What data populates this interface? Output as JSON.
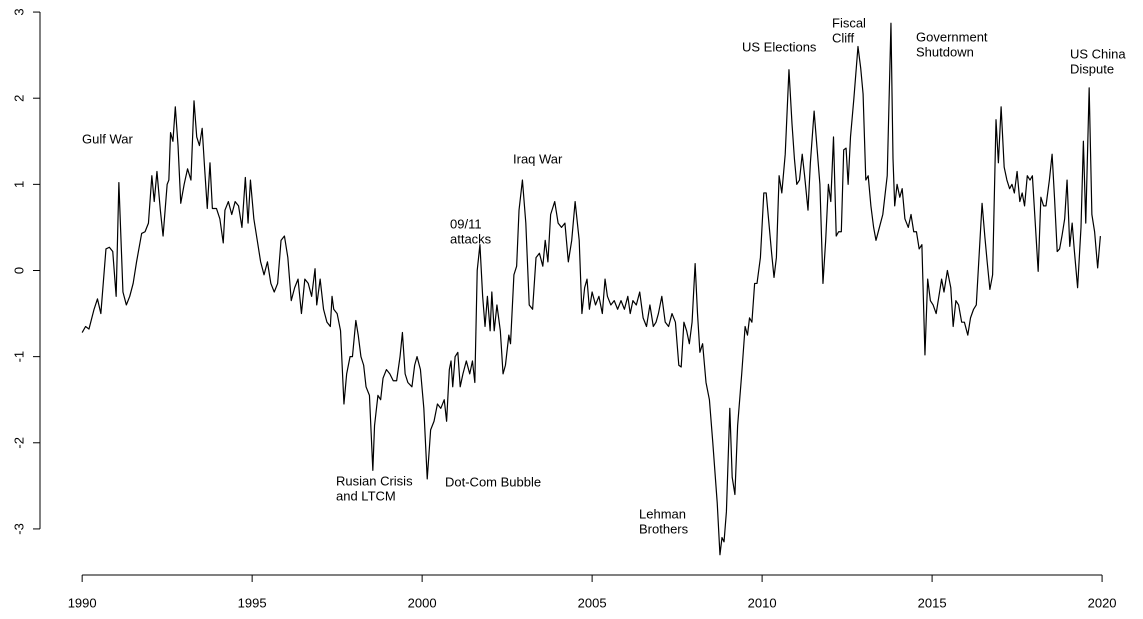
{
  "chart_data": {
    "type": "line",
    "xlim": [
      1988.76,
      2020.38
    ],
    "ylim": [
      -3.5,
      3.14
    ],
    "xticks": [
      1990,
      1995,
      2000,
      2005,
      2010,
      2015,
      2020
    ],
    "yticks": [
      -3,
      -2,
      -1,
      0,
      1,
      2,
      3
    ],
    "color": "#000000",
    "annotations": [
      [
        "Gulf War"
      ],
      [
        "Rusian Crisis",
        "and LTCM"
      ],
      [
        "Dot-Com Bubble"
      ],
      [
        "09/11",
        "attacks"
      ],
      [
        "Iraq War"
      ],
      [
        "Lehman",
        "Brothers"
      ],
      [
        "US Elections"
      ],
      [
        "Fiscal",
        "Cliff"
      ],
      [
        "Government",
        "Shutdown"
      ],
      [
        "US China",
        "Dispute"
      ]
    ],
    "x": [
      1990.0,
      1990.1,
      1990.2,
      1990.35,
      1990.45,
      1990.55,
      1990.7,
      1990.8,
      1990.9,
      1991.0,
      1991.08,
      1991.2,
      1991.3,
      1991.4,
      1991.5,
      1991.6,
      1991.75,
      1991.85,
      1991.95,
      1992.05,
      1992.12,
      1992.2,
      1992.3,
      1992.38,
      1992.5,
      1992.55,
      1992.6,
      1992.67,
      1992.74,
      1992.82,
      1992.9,
      1993.0,
      1993.1,
      1993.2,
      1993.29,
      1993.37,
      1993.45,
      1993.53,
      1993.6,
      1993.68,
      1993.76,
      1993.83,
      1993.95,
      1994.05,
      1994.15,
      1994.2,
      1994.3,
      1994.4,
      1994.5,
      1994.6,
      1994.7,
      1994.8,
      1994.88,
      1994.95,
      1995.05,
      1995.15,
      1995.25,
      1995.35,
      1995.45,
      1995.55,
      1995.65,
      1995.75,
      1995.85,
      1995.95,
      1996.05,
      1996.15,
      1996.25,
      1996.35,
      1996.45,
      1996.55,
      1996.65,
      1996.75,
      1996.85,
      1996.9,
      1997.0,
      1997.1,
      1997.2,
      1997.3,
      1997.35,
      1997.4,
      1997.5,
      1997.6,
      1997.7,
      1997.78,
      1997.88,
      1997.95,
      1998.05,
      1998.12,
      1998.2,
      1998.28,
      1998.35,
      1998.45,
      1998.55,
      1998.6,
      1998.7,
      1998.78,
      1998.85,
      1998.95,
      1999.05,
      1999.15,
      1999.25,
      1999.35,
      1999.42,
      1999.5,
      1999.58,
      1999.7,
      1999.78,
      1999.85,
      1999.95,
      2000.05,
      2000.15,
      2000.25,
      2000.35,
      2000.45,
      2000.55,
      2000.65,
      2000.72,
      2000.8,
      2000.85,
      2000.9,
      2000.97,
      2001.05,
      2001.12,
      2001.2,
      2001.3,
      2001.4,
      2001.48,
      2001.55,
      2001.62,
      2001.7,
      2001.78,
      2001.85,
      2001.92,
      2002.0,
      2002.05,
      2002.12,
      2002.2,
      2002.3,
      2002.38,
      2002.45,
      2002.55,
      2002.6,
      2002.7,
      2002.78,
      2002.85,
      2002.95,
      2003.05,
      2003.15,
      2003.25,
      2003.35,
      2003.45,
      2003.55,
      2003.62,
      2003.7,
      2003.78,
      2003.9,
      2004.0,
      2004.1,
      2004.2,
      2004.3,
      2004.4,
      2004.5,
      2004.62,
      2004.7,
      2004.78,
      2004.85,
      2004.92,
      2005.0,
      2005.1,
      2005.2,
      2005.3,
      2005.38,
      2005.45,
      2005.55,
      2005.65,
      2005.75,
      2005.85,
      2005.95,
      2006.05,
      2006.12,
      2006.2,
      2006.3,
      2006.4,
      2006.5,
      2006.6,
      2006.7,
      2006.8,
      2006.88,
      2006.95,
      2007.05,
      2007.15,
      2007.25,
      2007.35,
      2007.45,
      2007.55,
      2007.62,
      2007.7,
      2007.78,
      2007.86,
      2007.94,
      2008.03,
      2008.1,
      2008.17,
      2008.25,
      2008.35,
      2008.45,
      2008.55,
      2008.68,
      2008.76,
      2008.82,
      2008.88,
      2008.95,
      2009.05,
      2009.12,
      2009.2,
      2009.28,
      2009.4,
      2009.5,
      2009.57,
      2009.63,
      2009.7,
      2009.78,
      2009.85,
      2009.95,
      2010.05,
      2010.12,
      2010.2,
      2010.28,
      2010.35,
      2010.42,
      2010.5,
      2010.58,
      2010.68,
      2010.79,
      2010.88,
      2010.95,
      2011.02,
      2011.1,
      2011.18,
      2011.25,
      2011.35,
      2011.42,
      2011.53,
      2011.62,
      2011.7,
      2011.79,
      2011.87,
      2011.95,
      2012.02,
      2012.1,
      2012.18,
      2012.25,
      2012.33,
      2012.4,
      2012.47,
      2012.53,
      2012.6,
      2012.7,
      2012.82,
      2012.9,
      2012.97,
      2013.05,
      2013.12,
      2013.2,
      2013.28,
      2013.35,
      2013.45,
      2013.55,
      2013.68,
      2013.79,
      2013.85,
      2013.9,
      2013.97,
      2014.05,
      2014.12,
      2014.2,
      2014.3,
      2014.38,
      2014.46,
      2014.54,
      2014.62,
      2014.7,
      2014.79,
      2014.87,
      2014.95,
      2015.03,
      2015.12,
      2015.2,
      2015.28,
      2015.35,
      2015.45,
      2015.55,
      2015.62,
      2015.7,
      2015.78,
      2015.87,
      2015.95,
      2016.05,
      2016.13,
      2016.22,
      2016.3,
      2016.47,
      2016.55,
      2016.62,
      2016.7,
      2016.78,
      2016.88,
      2016.95,
      2017.03,
      2017.12,
      2017.2,
      2017.28,
      2017.35,
      2017.42,
      2017.5,
      2017.58,
      2017.65,
      2017.72,
      2017.8,
      2017.88,
      2017.95,
      2018.12,
      2018.2,
      2018.28,
      2018.35,
      2018.45,
      2018.53,
      2018.6,
      2018.68,
      2018.75,
      2018.82,
      2018.9,
      2018.97,
      2019.05,
      2019.12,
      2019.18,
      2019.28,
      2019.38,
      2019.45,
      2019.52,
      2019.62,
      2019.7,
      2019.78,
      2019.87,
      2019.95
    ],
    "values": [
      -0.72,
      -0.65,
      -0.68,
      -0.45,
      -0.33,
      -0.5,
      0.25,
      0.27,
      0.22,
      -0.3,
      1.02,
      -0.25,
      -0.4,
      -0.3,
      -0.15,
      0.1,
      0.43,
      0.45,
      0.55,
      1.1,
      0.8,
      1.15,
      0.7,
      0.4,
      1.0,
      1.05,
      1.6,
      1.5,
      1.9,
      1.45,
      0.78,
      1.0,
      1.18,
      1.05,
      1.97,
      1.55,
      1.45,
      1.65,
      1.2,
      0.72,
      1.25,
      0.72,
      0.72,
      0.6,
      0.32,
      0.7,
      0.8,
      0.65,
      0.8,
      0.75,
      0.5,
      1.08,
      0.55,
      1.05,
      0.6,
      0.35,
      0.1,
      -0.05,
      0.1,
      -0.15,
      -0.25,
      -0.15,
      0.35,
      0.4,
      0.15,
      -0.35,
      -0.2,
      -0.1,
      -0.5,
      -0.1,
      -0.15,
      -0.3,
      0.02,
      -0.4,
      -0.1,
      -0.45,
      -0.6,
      -0.65,
      -0.3,
      -0.45,
      -0.5,
      -0.7,
      -1.55,
      -1.2,
      -1.0,
      -1.0,
      -0.58,
      -0.75,
      -1.0,
      -1.1,
      -1.35,
      -1.45,
      -2.32,
      -1.8,
      -1.45,
      -1.5,
      -1.25,
      -1.15,
      -1.2,
      -1.28,
      -1.28,
      -1.0,
      -0.72,
      -1.2,
      -1.3,
      -1.35,
      -1.1,
      -1.0,
      -1.15,
      -1.6,
      -2.42,
      -1.85,
      -1.75,
      -1.55,
      -1.6,
      -1.5,
      -1.75,
      -1.15,
      -1.05,
      -1.35,
      -1.0,
      -0.95,
      -1.35,
      -1.2,
      -1.05,
      -1.2,
      -1.05,
      -1.3,
      0.0,
      0.3,
      -0.3,
      -0.65,
      -0.3,
      -0.7,
      -0.25,
      -0.7,
      -0.4,
      -0.7,
      -1.2,
      -1.1,
      -0.75,
      -0.85,
      -0.05,
      0.05,
      0.7,
      1.05,
      0.55,
      -0.4,
      -0.45,
      0.15,
      0.2,
      0.05,
      0.35,
      0.1,
      0.65,
      0.8,
      0.55,
      0.5,
      0.55,
      0.1,
      0.35,
      0.8,
      0.35,
      -0.5,
      -0.2,
      -0.1,
      -0.45,
      -0.25,
      -0.4,
      -0.3,
      -0.5,
      -0.1,
      -0.3,
      -0.4,
      -0.35,
      -0.45,
      -0.35,
      -0.45,
      -0.3,
      -0.5,
      -0.35,
      -0.4,
      -0.25,
      -0.55,
      -0.65,
      -0.4,
      -0.65,
      -0.6,
      -0.5,
      -0.3,
      -0.6,
      -0.65,
      -0.5,
      -0.6,
      -1.1,
      -1.12,
      -0.6,
      -0.7,
      -0.85,
      -0.6,
      0.08,
      -0.5,
      -0.95,
      -0.85,
      -1.3,
      -1.5,
      -2.0,
      -2.7,
      -3.3,
      -3.1,
      -3.15,
      -2.8,
      -1.6,
      -2.4,
      -2.6,
      -1.8,
      -1.2,
      -0.65,
      -0.75,
      -0.55,
      -0.6,
      -0.15,
      -0.15,
      0.15,
      0.9,
      0.9,
      0.55,
      0.2,
      -0.08,
      0.15,
      1.1,
      0.9,
      1.35,
      2.33,
      1.7,
      1.3,
      1.0,
      1.05,
      1.35,
      1.1,
      0.7,
      1.25,
      1.85,
      1.4,
      1.0,
      -0.15,
      0.35,
      1.0,
      0.8,
      1.55,
      0.4,
      0.45,
      0.45,
      1.4,
      1.42,
      1.0,
      1.55,
      2.0,
      2.6,
      2.35,
      2.05,
      1.05,
      1.1,
      0.75,
      0.5,
      0.35,
      0.5,
      0.65,
      1.1,
      2.87,
      1.3,
      0.75,
      1.0,
      0.85,
      0.95,
      0.6,
      0.5,
      0.65,
      0.45,
      0.45,
      0.25,
      0.3,
      -0.98,
      -0.1,
      -0.35,
      -0.4,
      -0.5,
      -0.3,
      -0.1,
      -0.25,
      0.0,
      -0.2,
      -0.65,
      -0.35,
      -0.4,
      -0.6,
      -0.6,
      -0.75,
      -0.55,
      -0.45,
      -0.4,
      0.78,
      0.4,
      0.1,
      -0.22,
      -0.05,
      1.75,
      1.25,
      1.9,
      1.2,
      1.05,
      0.95,
      1.0,
      0.9,
      1.15,
      0.8,
      0.9,
      0.75,
      1.1,
      1.05,
      1.1,
      -0.01,
      0.85,
      0.75,
      0.75,
      1.05,
      1.35,
      0.85,
      0.22,
      0.25,
      0.4,
      0.6,
      1.05,
      0.28,
      0.55,
      0.25,
      -0.2,
      0.5,
      1.5,
      0.55,
      2.12,
      0.65,
      0.45,
      0.03,
      0.4
    ]
  }
}
